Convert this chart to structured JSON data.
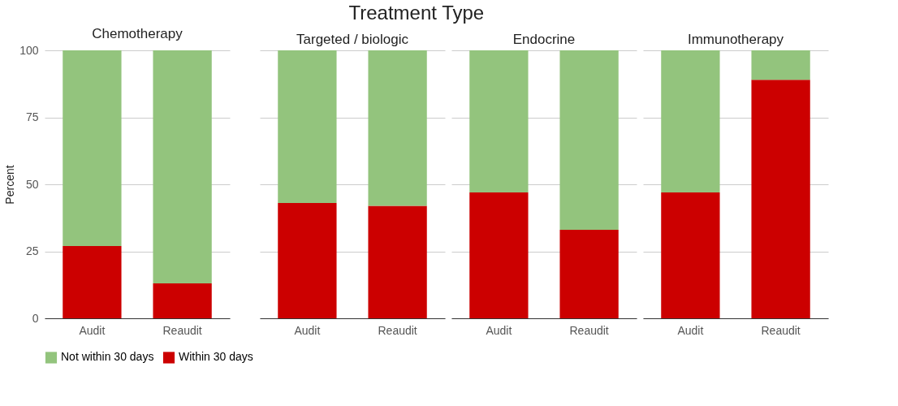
{
  "chart_data": [
    {
      "type": "bar",
      "title": "Chemotherapy",
      "annotations": [
        "Treatment Type"
      ],
      "ylabel": "Percent",
      "categories": [
        "Audit",
        "Reaudit"
      ],
      "stacked": true,
      "ylim": [
        0,
        100
      ],
      "yticks": [
        0,
        25,
        50,
        75,
        100
      ],
      "grid": "y",
      "legend": "bottom",
      "series": [
        {
          "name": "Within 30 days",
          "color": "#cc0000",
          "values": [
            27,
            13
          ]
        },
        {
          "name": "Not within 30 days",
          "color": "#93c47d",
          "values": [
            73,
            87
          ]
        }
      ]
    },
    {
      "type": "bar",
      "title": "Targeted / biologic",
      "categories": [
        "Audit",
        "Reaudit"
      ],
      "stacked": true,
      "ylim": [
        0,
        100
      ],
      "yticks": [
        0,
        25,
        50,
        75,
        100
      ],
      "grid": "y",
      "tick_labels": "x",
      "series": [
        {
          "color": "#cc0000",
          "values": [
            43,
            42
          ]
        },
        {
          "color": "#93c47d",
          "values": [
            57,
            58
          ]
        }
      ]
    },
    {
      "type": "bar",
      "title": "Endocrine",
      "categories": [
        "Audit",
        "Reaudit"
      ],
      "stacked": true,
      "ylim": [
        0,
        100
      ],
      "yticks": [
        0,
        25,
        50,
        75,
        100
      ],
      "grid": "y",
      "tick_labels": "x",
      "series": [
        {
          "color": "#cc0000",
          "values": [
            47,
            33
          ]
        },
        {
          "color": "#93c47d",
          "values": [
            53,
            67
          ]
        }
      ]
    },
    {
      "type": "bar",
      "title": "Immunotherapy",
      "categories": [
        "Audit",
        "Reaudit"
      ],
      "stacked": true,
      "ylim": [
        0,
        100
      ],
      "yticks": [
        0,
        25,
        50,
        75,
        100
      ],
      "grid": "y",
      "tick_labels": "x",
      "series": [
        {
          "color": "#cc0000",
          "values": [
            47,
            89
          ]
        },
        {
          "color": "#93c47d",
          "values": [
            53,
            11
          ]
        }
      ]
    }
  ]
}
